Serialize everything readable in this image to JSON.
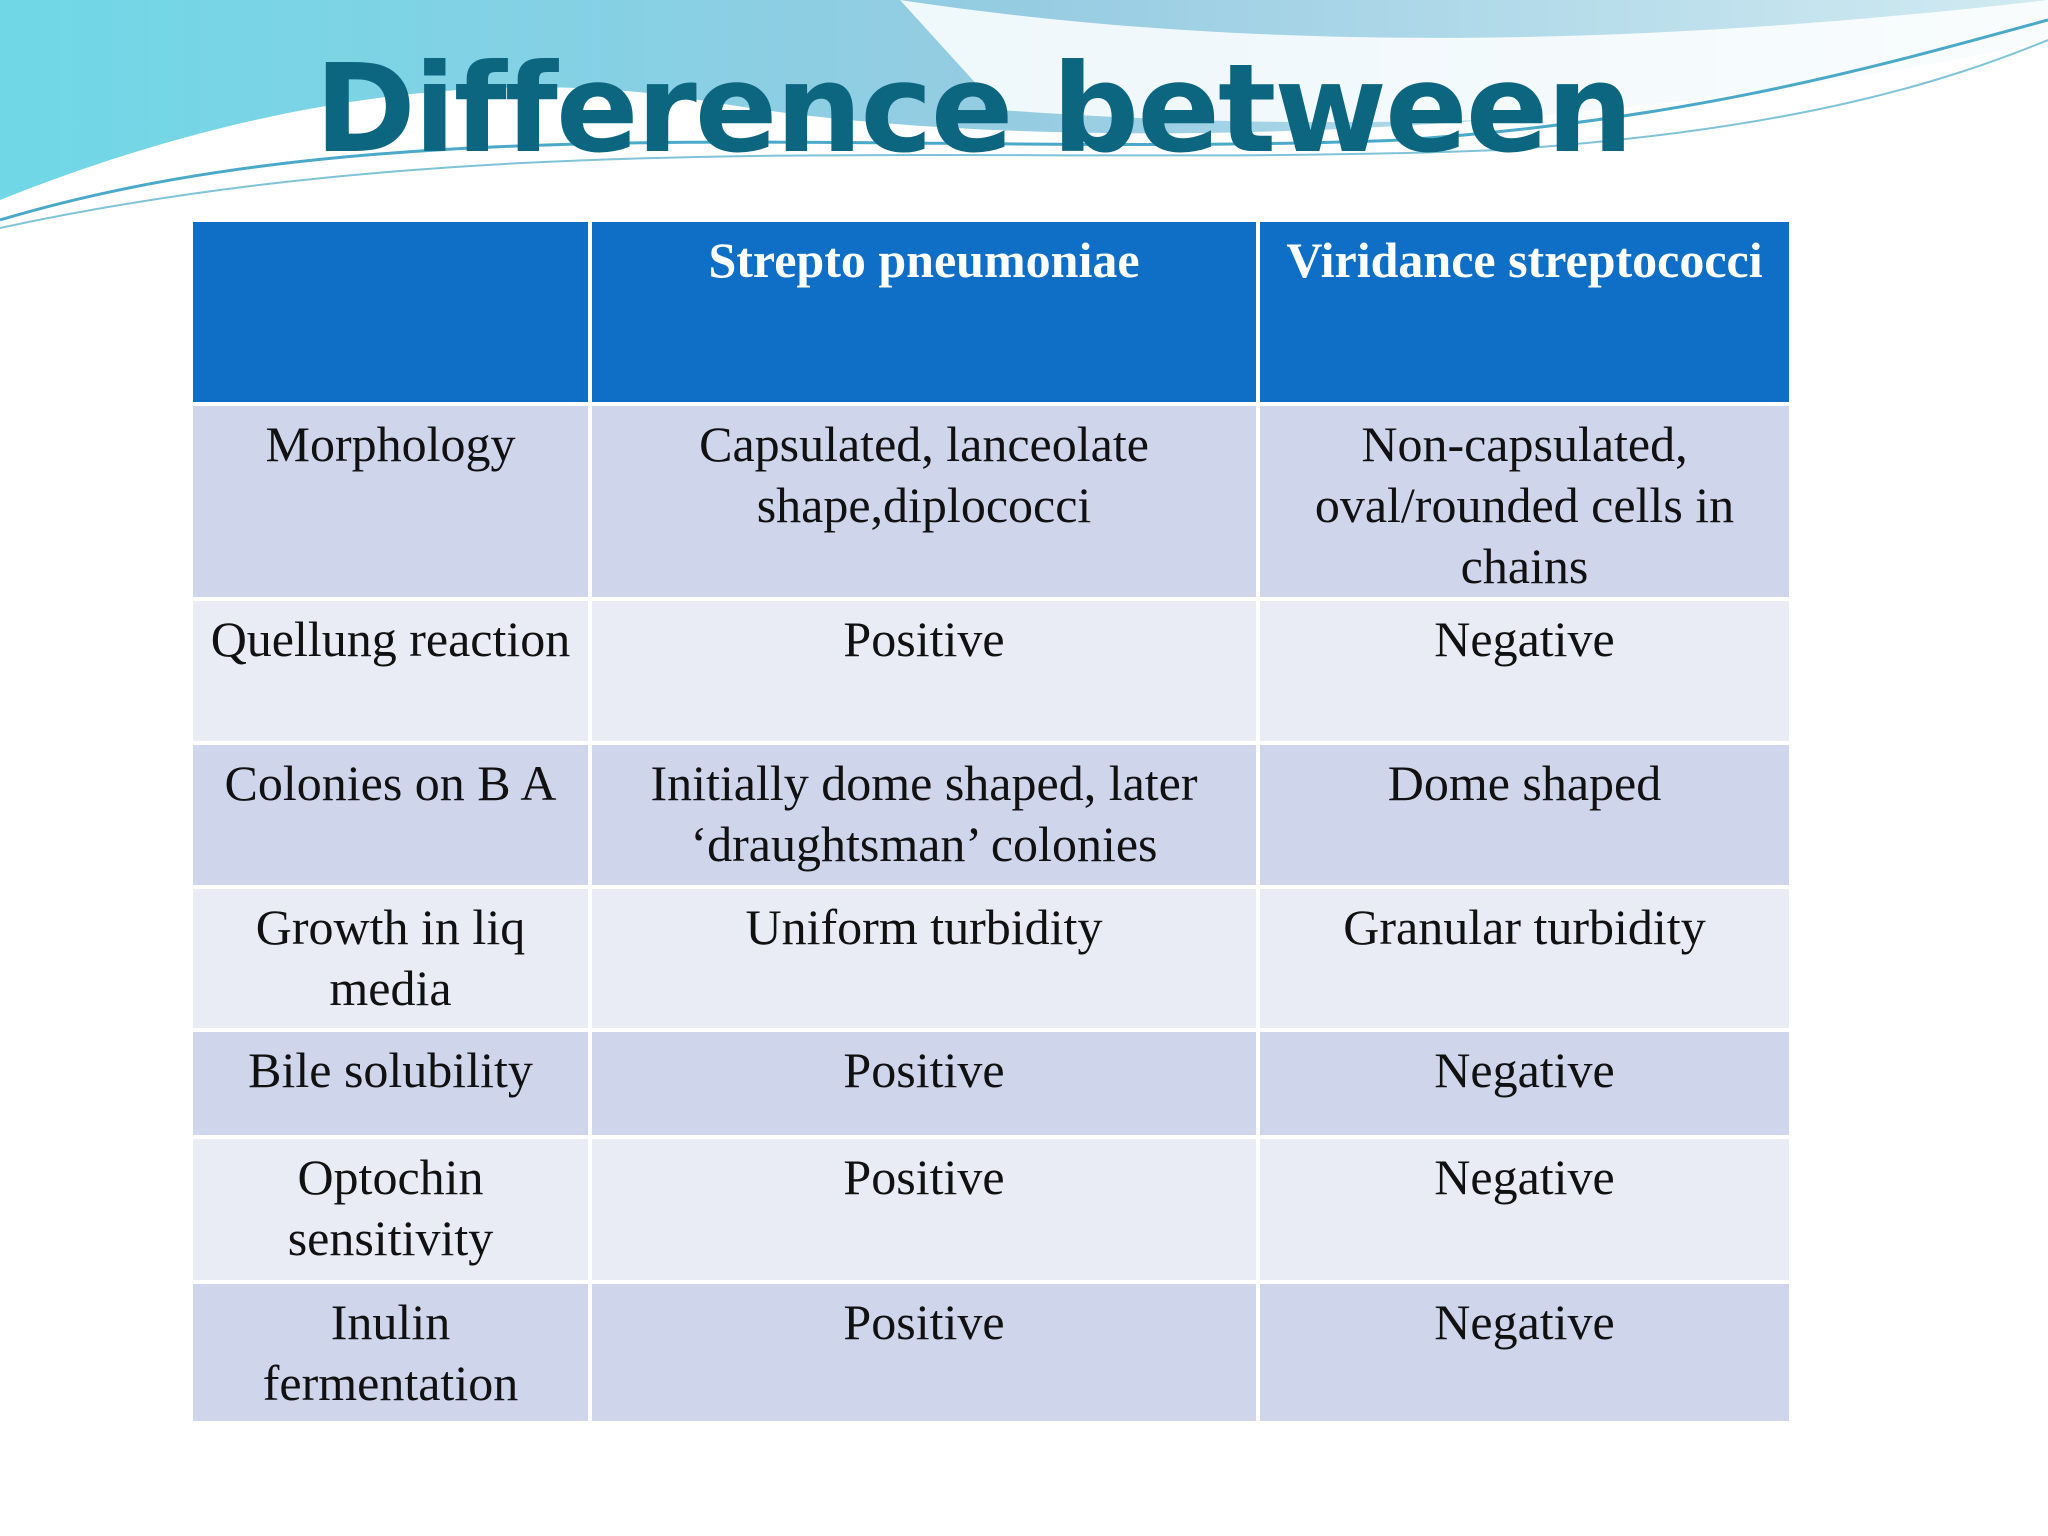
{
  "header": {
    "title": "Difference between"
  },
  "table": {
    "columns": [
      "Strepto pneumoniae",
      "Viridance streptococci"
    ],
    "rows": [
      [
        "Morphology",
        "Capsulated, lanceolate shape,diplococci",
        "Non-capsulated, oval/rounded cells in chains"
      ],
      [
        "Quellung reaction",
        "Positive",
        "Negative"
      ],
      [
        "Colonies on B A",
        "Initially dome shaped, later ‘draughtsman’ colonies",
        "Dome shaped"
      ],
      [
        "Growth in liq media",
        "Uniform turbidity",
        "Granular turbidity"
      ],
      [
        "Bile solubility",
        "Positive",
        "Negative"
      ],
      [
        "Optochin sensitivity",
        "Positive",
        "Negative"
      ],
      [
        "Inulin fermentation",
        "Positive",
        "Negative"
      ]
    ]
  }
}
